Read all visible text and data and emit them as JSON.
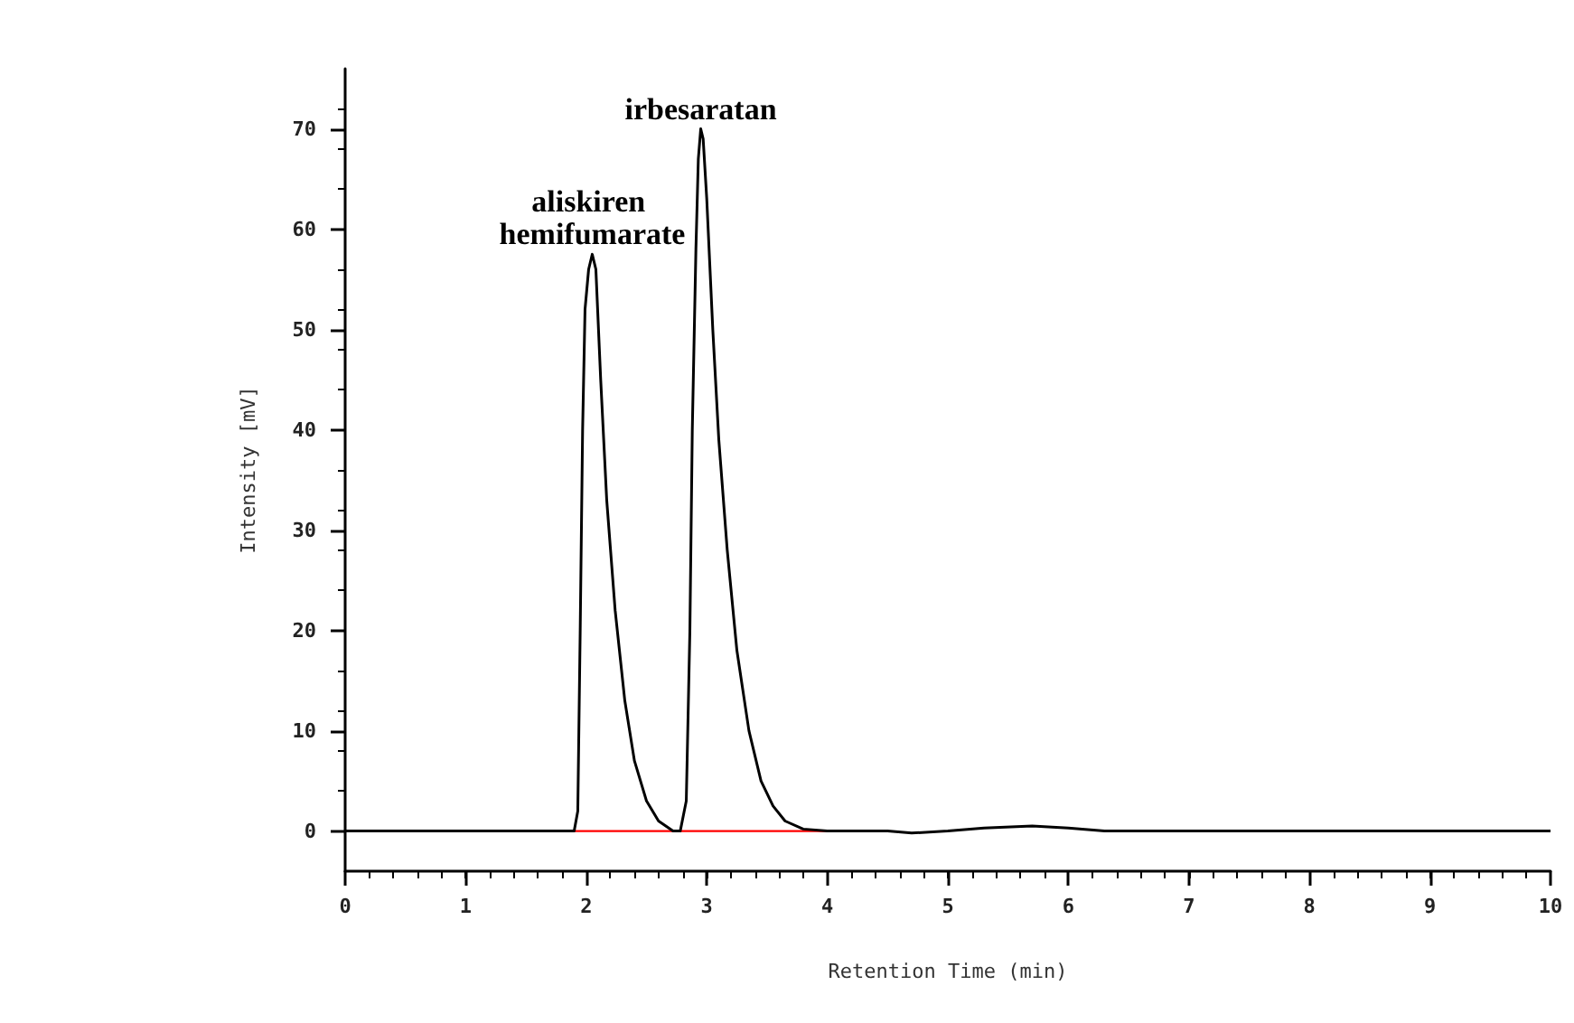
{
  "chart_data": {
    "type": "line",
    "xlabel": "Retention Time (min)",
    "ylabel": "Intensity [mV]",
    "xlim": [
      0,
      10
    ],
    "xticks": [
      0,
      1,
      2,
      3,
      4,
      5,
      6,
      7,
      8,
      9,
      10
    ],
    "ylim": [
      -4,
      76
    ],
    "yticks": [
      0,
      10,
      20,
      30,
      40,
      50,
      60,
      70
    ],
    "grid": false,
    "marker": "none",
    "line_style": "solid",
    "series": [
      {
        "color": "#000000",
        "x": [
          0,
          1.9,
          1.93,
          1.95,
          1.97,
          1.99,
          2.02,
          2.05,
          2.08,
          2.12,
          2.17,
          2.24,
          2.32,
          2.4,
          2.5,
          2.6,
          2.72,
          2.78,
          2.83,
          2.86,
          2.88,
          2.91,
          2.93,
          2.95,
          2.97,
          3.0,
          3.05,
          3.1,
          3.17,
          3.25,
          3.35,
          3.45,
          3.55,
          3.65,
          3.8,
          4.0,
          4.5,
          4.7,
          5.0,
          5.3,
          5.7,
          6.0,
          6.3,
          10
        ],
        "values": [
          0,
          0,
          2,
          20,
          40,
          52,
          56,
          57.5,
          56,
          45,
          33,
          22,
          13,
          7,
          3,
          1,
          0,
          0,
          3,
          20,
          40,
          58,
          67,
          70,
          69,
          63,
          50,
          39,
          28,
          18,
          10,
          5,
          2.5,
          1,
          0.2,
          0,
          0,
          -0.2,
          0,
          0.3,
          0.5,
          0.3,
          0,
          0
        ]
      },
      {
        "color": "#ff0000",
        "x": [
          1.35,
          2.75,
          4.45
        ],
        "values": [
          0,
          0,
          0
        ]
      }
    ],
    "annotations": [
      {
        "text": "aliskiren hemifumarate",
        "x": 2.05,
        "y": 57.5
      },
      {
        "text": "irbesaratan",
        "x": 2.95,
        "y": 70
      }
    ]
  }
}
